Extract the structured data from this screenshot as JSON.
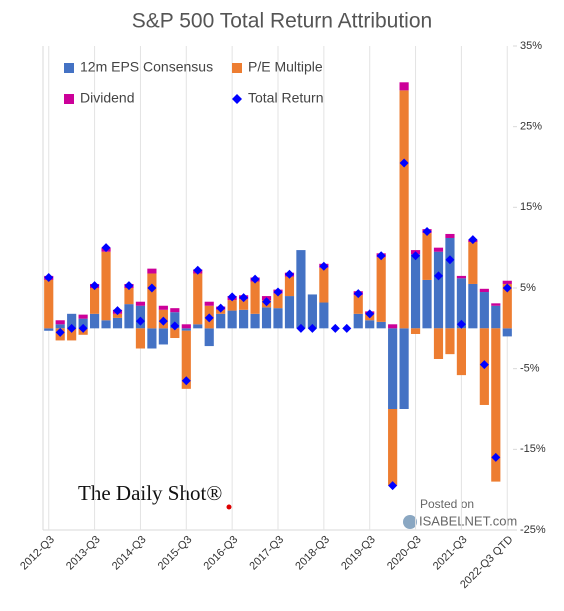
{
  "chart_data": {
    "type": "stacked_bar",
    "title": "S&P 500 Total Return Attribution",
    "annotations": [
      "The Daily Shot®",
      "Posted on",
      "ISABELNET.com"
    ],
    "categories": [
      "2012-Q3",
      null,
      null,
      null,
      "2013-Q3",
      null,
      null,
      null,
      "2014-Q3",
      null,
      null,
      null,
      "2015-Q3",
      null,
      null,
      null,
      "2016-Q3",
      null,
      null,
      null,
      "2017-Q3",
      null,
      null,
      null,
      "2018-Q3",
      null,
      null,
      null,
      "2019-Q3",
      null,
      null,
      null,
      "2020-Q3",
      null,
      null,
      null,
      "2021-Q3",
      null,
      null,
      null,
      "2022-Q3 QTD"
    ],
    "series": [
      {
        "name": "12m EPS Consensus",
        "color": "#4472c4",
        "values": [
          -0.3,
          0.5,
          1.8,
          1.2,
          1.8,
          1,
          1.3,
          3,
          2.8,
          -2.5,
          -2,
          2,
          -0.3,
          0.5,
          -2.2,
          1.8,
          2.2,
          2.3,
          1.8,
          2.6,
          2.5,
          4,
          9.7,
          4.2,
          3.2,
          0,
          0,
          1.8,
          1,
          0.8,
          -10,
          -10,
          9.2,
          6,
          9.5,
          11.2,
          6.2,
          5.5,
          4.5,
          2.8,
          -1
        ]
      },
      {
        "name": "P/E Multiple",
        "color": "#ed7d31",
        "values": [
          6,
          -1.5,
          -1.5,
          -0.8,
          3.2,
          8.5,
          0.5,
          2,
          -2.5,
          6.8,
          2.3,
          -1.2,
          -7.2,
          6.3,
          2.8,
          0.5,
          1.3,
          1.3,
          4,
          0.9,
          1.8,
          2.4,
          0,
          0,
          4.3,
          0,
          0,
          2.3,
          0.8,
          8,
          -9.5,
          29.5,
          -0.7,
          5.8,
          -3.8,
          -3.2,
          -5.8,
          5.2,
          -9.5,
          -19,
          5.5
        ]
      },
      {
        "name": "Dividend",
        "color": "#cc0099",
        "values": [
          0.5,
          0.5,
          0,
          0.5,
          0.5,
          0.5,
          0.5,
          0.5,
          0.5,
          0.6,
          0.5,
          0.5,
          0.5,
          0.5,
          0.5,
          0.4,
          0.5,
          0.5,
          0.5,
          0.5,
          0.5,
          0.5,
          0,
          0,
          0.5,
          0,
          0,
          0.5,
          0.3,
          0.5,
          0.5,
          1,
          0.5,
          0.5,
          0.5,
          0.5,
          0.3,
          0.3,
          0.4,
          0.3,
          0.4
        ]
      },
      {
        "name": "Total Return",
        "color": "#0000ff",
        "kind": "marker",
        "values": [
          6.3,
          -0.5,
          0,
          0,
          5.3,
          10,
          2.2,
          5.3,
          0.9,
          5,
          0.9,
          0.3,
          -6.5,
          7.2,
          1.3,
          2.5,
          3.9,
          3.8,
          6.1,
          3.3,
          4.5,
          6.7,
          0,
          0,
          7.7,
          0,
          0,
          4.3,
          1.8,
          9,
          -19.5,
          20.5,
          9,
          12,
          6.5,
          8.5,
          0.5,
          11,
          -4.5,
          -16,
          5
        ]
      }
    ],
    "ylim": [
      -25,
      35
    ],
    "yticks": [
      {
        "value": 35,
        "label": "35%"
      },
      {
        "value": 25,
        "label": "25%"
      },
      {
        "value": 15,
        "label": "15%"
      },
      {
        "value": 5,
        "label": "5%"
      },
      {
        "value": -5,
        "label": "-5%"
      },
      {
        "value": -15,
        "label": "-15%"
      },
      {
        "value": -25,
        "label": "-25%"
      }
    ],
    "grid": true
  }
}
